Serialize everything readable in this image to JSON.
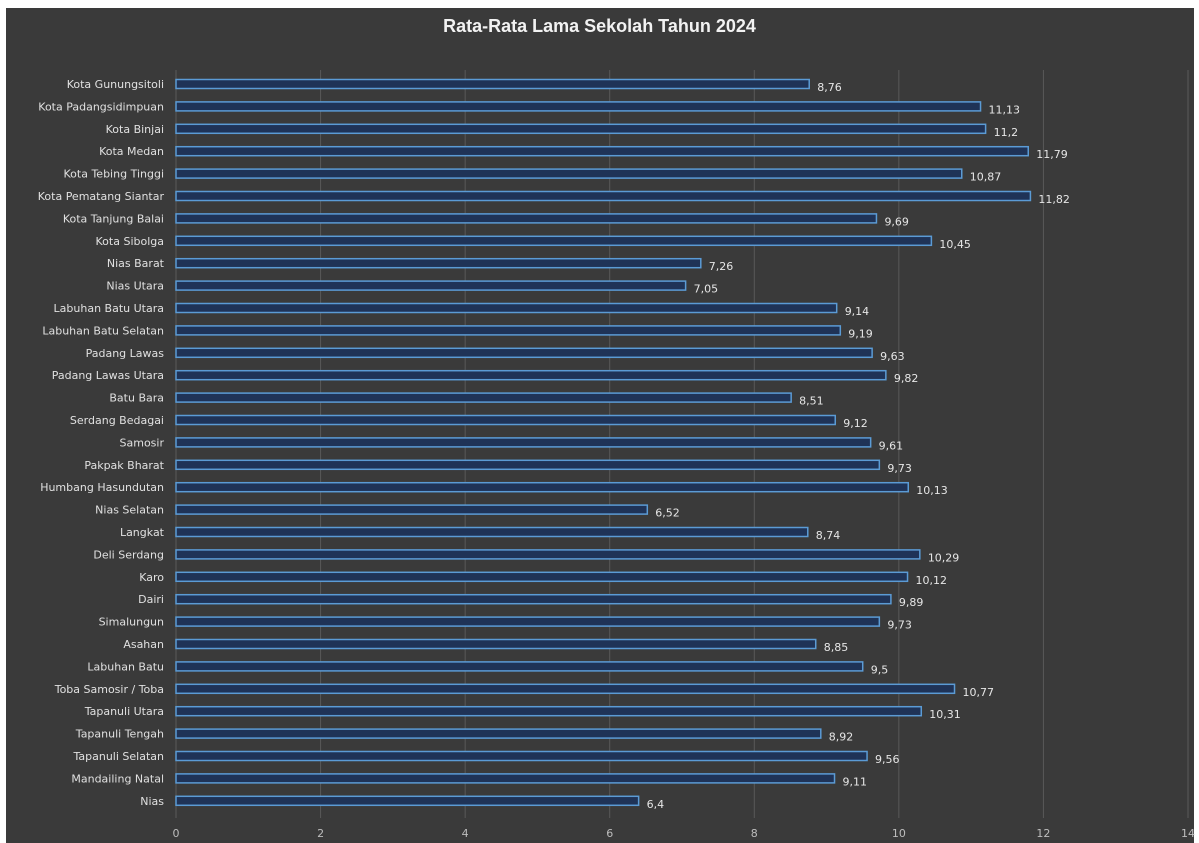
{
  "colors": {
    "background": "#3a3a3a",
    "bar_fill": "#1f3357",
    "bar_stroke": "#5b9bd5",
    "gridline": "#595959",
    "text": "#e0e0e0"
  },
  "chart_data": {
    "type": "bar",
    "orientation": "horizontal",
    "title": "Rata-Rata Lama Sekolah Tahun 2024",
    "xlabel": "",
    "ylabel": "",
    "xlim": [
      0,
      14
    ],
    "x_ticks": [
      0,
      2,
      4,
      6,
      8,
      10,
      12,
      14
    ],
    "grid": "vertical",
    "legend": "none",
    "categories": [
      "Kota Gunungsitoli",
      "Kota Padangsidimpuan",
      "Kota Binjai",
      "Kota Medan",
      "Kota Tebing Tinggi",
      "Kota Pematang Siantar",
      "Kota Tanjung Balai",
      "Kota Sibolga",
      "Nias Barat",
      "Nias Utara",
      "Labuhan Batu Utara",
      "Labuhan Batu Selatan",
      "Padang Lawas",
      "Padang Lawas Utara",
      "Batu Bara",
      "Serdang Bedagai",
      "Samosir",
      "Pakpak Bharat",
      "Humbang Hasundutan",
      "Nias Selatan",
      "Langkat",
      "Deli Serdang",
      "Karo",
      "Dairi",
      "Simalungun",
      "Asahan",
      "Labuhan Batu",
      "Toba Samosir / Toba",
      "Tapanuli Utara",
      "Tapanuli Tengah",
      "Tapanuli Selatan",
      "Mandailing Natal",
      "Nias"
    ],
    "values": [
      8.76,
      11.13,
      11.2,
      11.79,
      10.87,
      11.82,
      9.69,
      10.45,
      7.26,
      7.05,
      9.14,
      9.19,
      9.63,
      9.82,
      8.51,
      9.12,
      9.61,
      9.73,
      10.13,
      6.52,
      8.74,
      10.29,
      10.12,
      9.89,
      9.73,
      8.85,
      9.5,
      10.77,
      10.31,
      8.92,
      9.56,
      9.11,
      6.4
    ],
    "value_labels": [
      "8,76",
      "11,13",
      "11,2",
      "11,79",
      "10,87",
      "11,82",
      "9,69",
      "10,45",
      "7,26",
      "7,05",
      "9,14",
      "9,19",
      "9,63",
      "9,82",
      "8,51",
      "9,12",
      "9,61",
      "9,73",
      "10,13",
      "6,52",
      "8,74",
      "10,29",
      "10,12",
      "9,89",
      "9,73",
      "8,85",
      "9,5",
      "10,77",
      "10,31",
      "8,92",
      "9,56",
      "9,11",
      "6,4"
    ]
  }
}
